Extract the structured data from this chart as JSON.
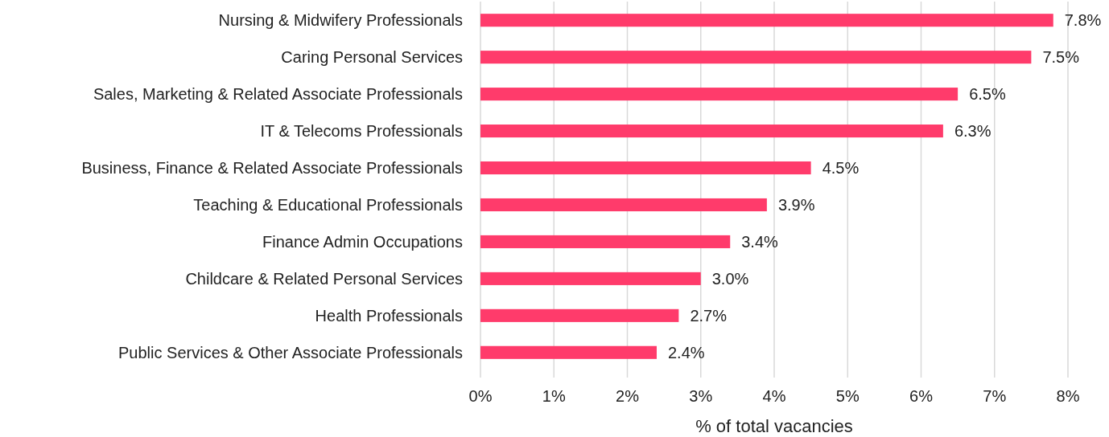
{
  "chart_data": {
    "type": "bar",
    "orientation": "horizontal",
    "xlabel": "% of total vacancies",
    "categories": [
      "Nursing & Midwifery Professionals",
      "Caring Personal Services",
      "Sales, Marketing & Related Associate Professionals",
      "IT & Telecoms Professionals",
      "Business, Finance & Related Associate Professionals",
      "Teaching & Educational Professionals",
      "Finance Admin Occupations",
      "Childcare & Related Personal Services",
      "Health Professionals",
      "Public Services & Other Associate Professionals"
    ],
    "values": [
      7.8,
      7.5,
      6.5,
      6.3,
      4.5,
      3.9,
      3.4,
      3.0,
      2.7,
      2.4
    ],
    "value_labels": [
      "7.8%",
      "7.5%",
      "6.5%",
      "6.3%",
      "4.5%",
      "3.9%",
      "3.4%",
      "3.0%",
      "2.7%",
      "2.4%"
    ],
    "color": "#ff3b6b",
    "xlim": [
      0,
      8
    ],
    "xticks": [
      {
        "value": 0,
        "label": "0%"
      },
      {
        "value": 1,
        "label": "1%"
      },
      {
        "value": 2,
        "label": "2%"
      },
      {
        "value": 3,
        "label": "3%"
      },
      {
        "value": 4,
        "label": "4%"
      },
      {
        "value": 5,
        "label": "5%"
      },
      {
        "value": 6,
        "label": "6%"
      },
      {
        "value": 7,
        "label": "7%"
      },
      {
        "value": 8,
        "label": "8%"
      }
    ],
    "grid": "x"
  }
}
